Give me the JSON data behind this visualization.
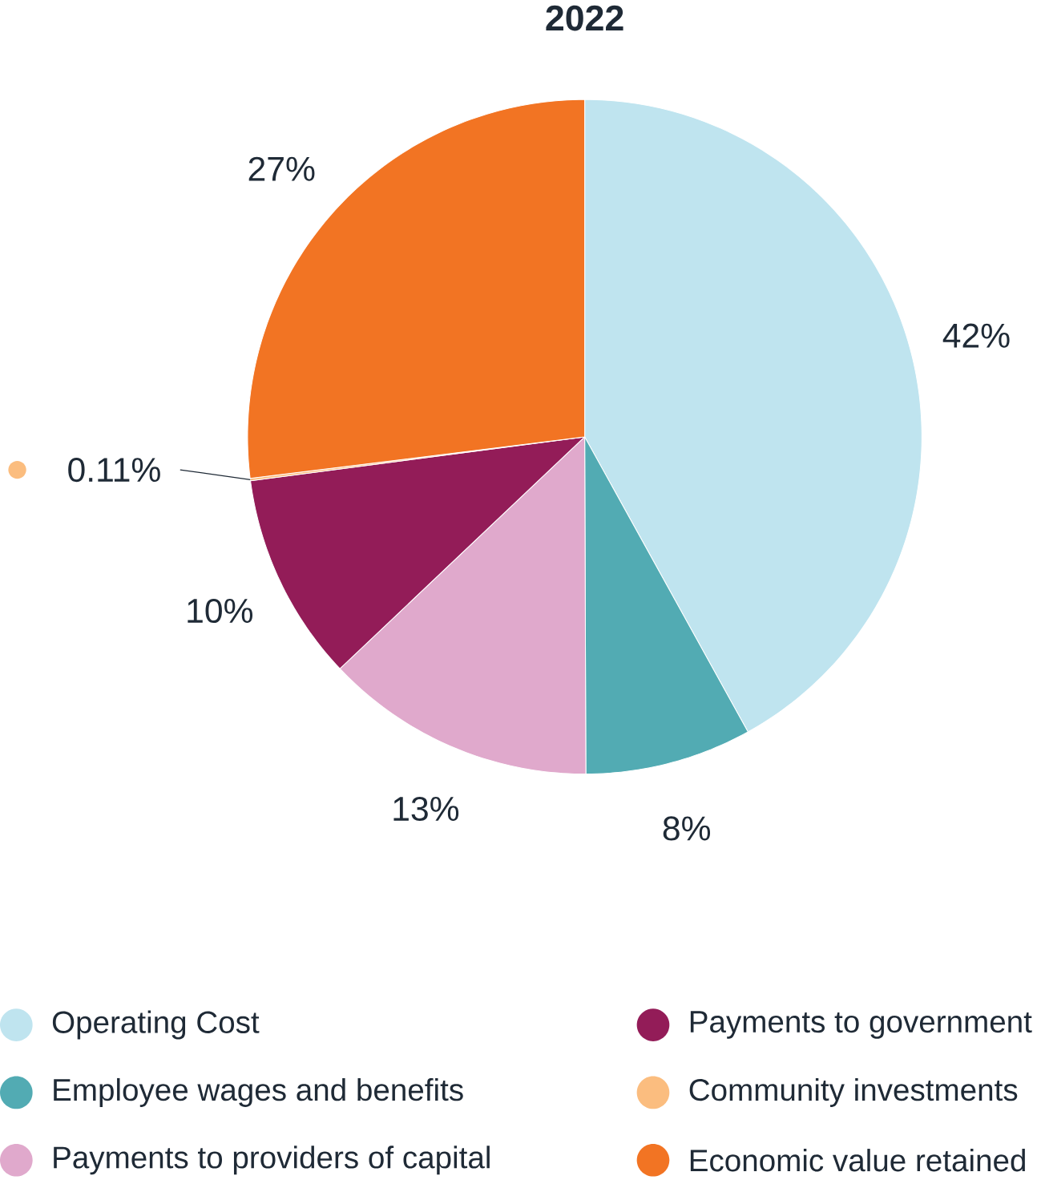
{
  "chart_data": {
    "type": "pie",
    "title": "2022",
    "categories": [
      "Operating Cost",
      "Employee wages and benefits",
      "Payments to providers of capital",
      "Payments to government",
      "Community investments",
      "Economic value retained"
    ],
    "values": [
      42,
      8,
      13,
      10,
      0.11,
      27
    ],
    "colors": [
      "#bfe4ef",
      "#52abb3",
      "#e0a9cc",
      "#931c58",
      "#fbbd7f",
      "#f27423"
    ],
    "value_labels": [
      "42%",
      "8%",
      "13%",
      "10%",
      "0.11%",
      "27%"
    ],
    "legend": "bottom"
  }
}
